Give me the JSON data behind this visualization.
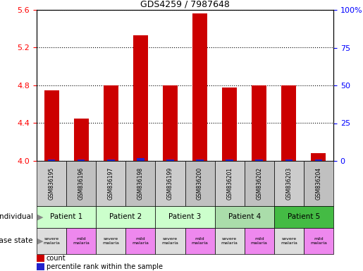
{
  "title": "GDS4259 / 7987648",
  "samples": [
    "GSM836195",
    "GSM836196",
    "GSM836197",
    "GSM836198",
    "GSM836199",
    "GSM836200",
    "GSM836201",
    "GSM836202",
    "GSM836203",
    "GSM836204"
  ],
  "red_values": [
    4.75,
    4.45,
    4.8,
    5.33,
    4.8,
    5.56,
    4.78,
    4.8,
    4.8,
    4.08
  ],
  "blue_values": [
    1,
    1,
    1,
    2,
    1,
    1,
    1,
    1,
    1,
    1
  ],
  "ylim_left": [
    4.0,
    5.6
  ],
  "ylim_right": [
    0,
    100
  ],
  "yticks_left": [
    4.0,
    4.4,
    4.8,
    5.2,
    5.6
  ],
  "yticks_right": [
    0,
    25,
    50,
    75,
    100
  ],
  "ytick_labels_right": [
    "0",
    "25",
    "50",
    "75",
    "100%"
  ],
  "patients": [
    {
      "label": "Patient 1",
      "cols": [
        0,
        1
      ],
      "color": "#ccffcc"
    },
    {
      "label": "Patient 2",
      "cols": [
        2,
        3
      ],
      "color": "#ccffcc"
    },
    {
      "label": "Patient 3",
      "cols": [
        4,
        5
      ],
      "color": "#ccffcc"
    },
    {
      "label": "Patient 4",
      "cols": [
        6,
        7
      ],
      "color": "#aaddaa"
    },
    {
      "label": "Patient 5",
      "cols": [
        8,
        9
      ],
      "color": "#44bb44"
    }
  ],
  "disease_states": [
    {
      "label": "severe\nmalaria",
      "col": 0,
      "color": "#dddddd"
    },
    {
      "label": "mild\nmalaria",
      "col": 1,
      "color": "#ee88ee"
    },
    {
      "label": "severe\nmalaria",
      "col": 2,
      "color": "#dddddd"
    },
    {
      "label": "mild\nmalaria",
      "col": 3,
      "color": "#ee88ee"
    },
    {
      "label": "severe\nmalaria",
      "col": 4,
      "color": "#dddddd"
    },
    {
      "label": "mild\nmalaria",
      "col": 5,
      "color": "#ee88ee"
    },
    {
      "label": "severe\nmalaria",
      "col": 6,
      "color": "#dddddd"
    },
    {
      "label": "mild\nmalaria",
      "col": 7,
      "color": "#ee88ee"
    },
    {
      "label": "severe\nmalaria",
      "col": 8,
      "color": "#dddddd"
    },
    {
      "label": "mild\nmalaria",
      "col": 9,
      "color": "#ee88ee"
    }
  ],
  "bar_color": "#cc0000",
  "blue_bar_color": "#2222cc",
  "bar_width": 0.5,
  "individual_label": "individual",
  "disease_label": "disease state",
  "legend_count": "count",
  "legend_percentile": "percentile rank within the sample"
}
